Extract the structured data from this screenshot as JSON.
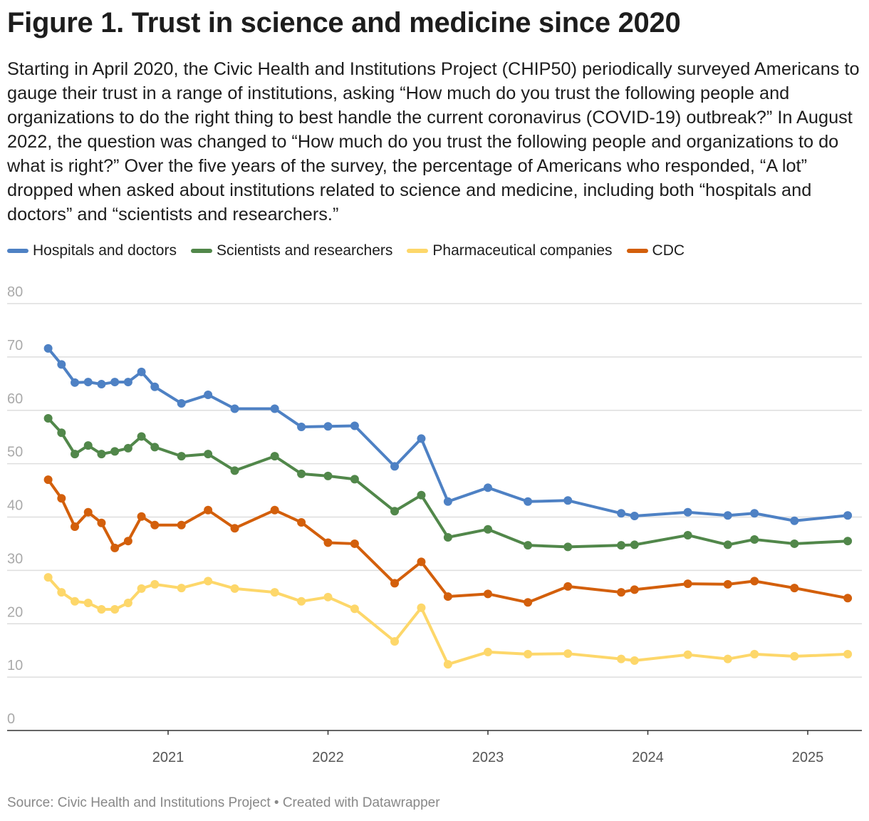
{
  "title": "Figure 1. Trust in science and medicine since 2020",
  "description": "Starting in April 2020, the Civic Health and Institutions Project (CHIP50) periodically surveyed Americans to gauge their trust in a range of institutions, asking “How much do you trust the following people and organizations to do the right thing to best handle the current coronavirus (COVID-19) outbreak?” In August 2022, the question was changed to “How much do you trust the following people and organizations to do what is right?” Over the five years of the survey, the percentage of Americans who responded, “A lot” dropped when asked about institutions related to science and medicine, including both “hospitals and doctors” and “scientists and researchers.”",
  "source": "Source: Civic Health and Institutions Project • Created with Datawrapper",
  "chart_data": {
    "type": "line",
    "title": "Figure 1. Trust in science and medicine since 2020",
    "xlabel": "",
    "ylabel": "",
    "ylim": [
      0,
      80
    ],
    "yticks": [
      0,
      10,
      20,
      30,
      40,
      50,
      60,
      70,
      80
    ],
    "xticks": [
      "2021",
      "2022",
      "2023",
      "2024",
      "2025"
    ],
    "grid": true,
    "legend": "top",
    "x": [
      "2020-04",
      "2020-05",
      "2020-06",
      "2020-07",
      "2020-08",
      "2020-09",
      "2020-10",
      "2020-11",
      "2020-12",
      "2021-02",
      "2021-04",
      "2021-06",
      "2021-09",
      "2021-11",
      "2022-01",
      "2022-03",
      "2022-06",
      "2022-08",
      "2022-10",
      "2023-01",
      "2023-04",
      "2023-07",
      "2023-11",
      "2023-12",
      "2024-04",
      "2024-07",
      "2024-09",
      "2024-12",
      "2025-04"
    ],
    "series": [
      {
        "name": "Hospitals and doctors",
        "color": "#4e81c4",
        "values": [
          71.6,
          68.6,
          65.2,
          65.3,
          64.9,
          65.3,
          65.3,
          67.2,
          64.4,
          61.3,
          62.9,
          60.3,
          60.3,
          56.9,
          57.0,
          57.1,
          49.5,
          54.7,
          42.9,
          45.5,
          42.9,
          43.1,
          40.7,
          40.2,
          40.9,
          40.3,
          40.7,
          39.3,
          40.3
        ]
      },
      {
        "name": "Scientists and researchers",
        "color": "#51874a",
        "values": [
          58.5,
          55.8,
          51.8,
          53.4,
          51.8,
          52.3,
          52.9,
          55.1,
          53.1,
          51.4,
          51.8,
          48.7,
          51.4,
          48.1,
          47.7,
          47.1,
          41.1,
          44.1,
          36.2,
          37.7,
          34.7,
          34.4,
          34.7,
          34.8,
          36.6,
          34.8,
          35.8,
          35.0,
          35.5
        ]
      },
      {
        "name": "Pharmaceutical companies",
        "color": "#fdd76a",
        "values": [
          28.7,
          25.9,
          24.2,
          23.9,
          22.7,
          22.7,
          23.9,
          26.6,
          27.4,
          26.7,
          28.0,
          26.6,
          25.9,
          24.2,
          25.0,
          22.8,
          16.7,
          23.0,
          12.4,
          14.7,
          14.3,
          14.4,
          13.4,
          13.1,
          14.2,
          13.4,
          14.3,
          13.9,
          14.3
        ]
      },
      {
        "name": "CDC",
        "color": "#d35f0b",
        "values": [
          47.0,
          43.5,
          38.2,
          40.9,
          38.9,
          34.2,
          35.5,
          40.1,
          38.5,
          38.5,
          41.3,
          37.9,
          41.3,
          39.0,
          35.2,
          35.0,
          27.6,
          31.6,
          25.1,
          25.6,
          24.0,
          27.0,
          25.9,
          26.4,
          27.5,
          27.4,
          28.0,
          26.7,
          24.8
        ]
      }
    ]
  }
}
